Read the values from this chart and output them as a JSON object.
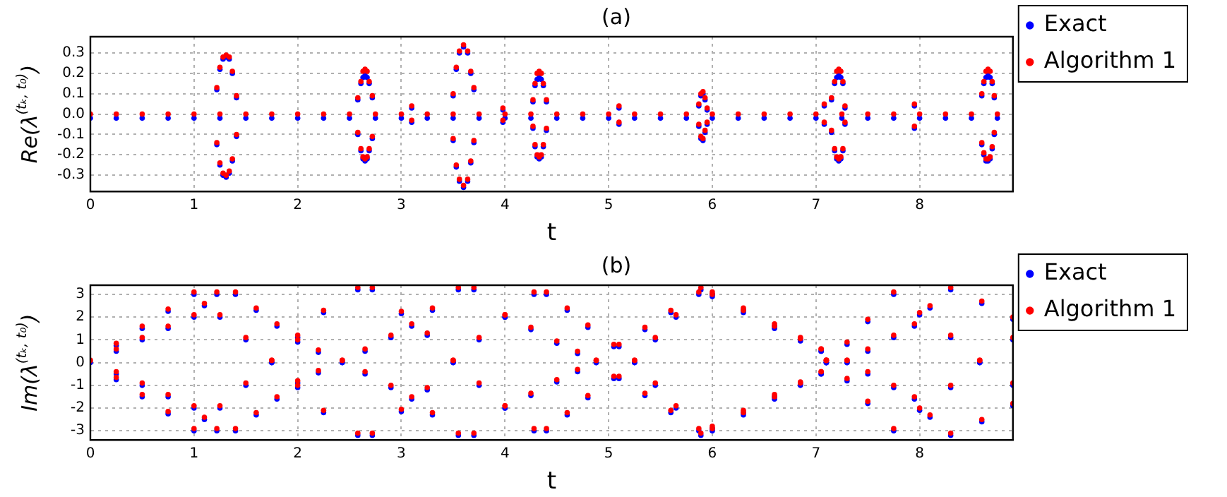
{
  "chart_data": [
    {
      "type": "scatter",
      "title": "(a)",
      "xlabel": "t",
      "ylabel": "Re(λ$^{(tₖ, t₀)}$)",
      "xlim": [
        0,
        8.9
      ],
      "xticks": [
        0,
        1,
        2,
        3,
        4,
        5,
        6,
        7,
        8
      ],
      "ylim": [
        -0.38,
        0.38
      ],
      "yticks": [
        -0.3,
        -0.2,
        -0.1,
        {
          "value": 0,
          "label": "0.0"
        },
        0.1,
        0.2,
        0.3
      ],
      "grid": true,
      "legend": "right",
      "marker": "circle",
      "x": [
        0,
        0.25,
        0.5,
        0.75,
        1,
        1.25,
        1.5,
        1.75,
        2,
        2.25,
        2.5,
        2.75,
        3,
        3.25,
        3.5,
        3.75,
        4,
        4.25,
        4.5,
        4.75,
        5,
        5.25,
        5.5,
        5.75,
        6,
        6.25,
        6.5,
        6.75,
        7,
        7.25,
        7.5,
        7.75,
        8,
        8.25,
        8.5,
        8.75,
        1.22,
        1.25,
        1.28,
        1.31,
        1.34,
        1.37,
        1.41,
        1.22,
        1.25,
        1.28,
        1.31,
        1.34,
        1.37,
        1.41,
        2.58,
        2.61,
        2.63,
        2.65,
        2.67,
        2.69,
        2.72,
        2.58,
        2.61,
        2.63,
        2.65,
        2.67,
        2.69,
        2.72,
        3.5,
        3.53,
        3.56,
        3.6,
        3.64,
        3.67,
        3.7,
        3.5,
        3.53,
        3.56,
        3.6,
        3.64,
        3.67,
        3.7,
        4.27,
        4.29,
        4.31,
        4.33,
        4.35,
        4.37,
        4.4,
        4.27,
        4.29,
        4.31,
        4.33,
        4.35,
        4.37,
        4.4,
        5.87,
        5.89,
        5.91,
        5.93,
        5.95,
        5.87,
        5.89,
        5.91,
        5.93,
        5.95,
        7.15,
        7.18,
        7.2,
        7.22,
        7.24,
        7.26,
        7.28,
        7.15,
        7.18,
        7.2,
        7.22,
        7.24,
        7.26,
        7.28,
        8.6,
        8.62,
        8.64,
        8.66,
        8.68,
        8.7,
        8.72,
        8.6,
        8.62,
        8.64,
        8.66,
        8.68,
        8.7,
        8.72,
        3.1,
        3.1,
        3.98,
        3.98,
        5.1,
        5.1,
        7.08,
        7.08,
        7.95,
        7.95
      ],
      "series": [
        {
          "name": "Exact",
          "color": "#0000ff",
          "values": [
            -0.02,
            -0.02,
            -0.02,
            -0.02,
            -0.02,
            -0.02,
            -0.02,
            -0.02,
            -0.02,
            -0.02,
            -0.02,
            -0.02,
            -0.02,
            -0.02,
            -0.02,
            -0.02,
            -0.02,
            -0.02,
            -0.02,
            -0.02,
            -0.02,
            -0.02,
            -0.02,
            -0.02,
            -0.02,
            -0.02,
            -0.02,
            -0.02,
            -0.02,
            -0.02,
            -0.02,
            -0.02,
            -0.02,
            -0.02,
            -0.02,
            -0.02,
            0.12,
            0.22,
            0.27,
            0.28,
            0.27,
            0.2,
            0.08,
            -0.15,
            -0.25,
            -0.3,
            -0.31,
            -0.29,
            -0.23,
            -0.11,
            0.07,
            0.15,
            0.18,
            0.19,
            0.18,
            0.15,
            0.08,
            -0.1,
            -0.18,
            -0.22,
            -0.23,
            -0.22,
            -0.18,
            -0.12,
            0.09,
            0.22,
            0.3,
            0.33,
            0.3,
            0.2,
            0.12,
            -0.13,
            -0.26,
            -0.33,
            -0.36,
            -0.33,
            -0.24,
            -0.14,
            0.06,
            0.14,
            0.17,
            0.18,
            0.17,
            0.14,
            0.06,
            -0.07,
            -0.16,
            -0.21,
            -0.22,
            -0.21,
            -0.16,
            -0.08,
            0.04,
            0.09,
            0.1,
            0.07,
            0.02,
            -0.06,
            -0.12,
            -0.13,
            -0.09,
            -0.05,
            0.07,
            0.15,
            0.18,
            0.19,
            0.18,
            0.15,
            0.03,
            -0.09,
            -0.18,
            -0.22,
            -0.23,
            -0.22,
            -0.18,
            -0.05,
            0.09,
            0.15,
            0.18,
            0.19,
            0.18,
            0.15,
            0.08,
            -0.15,
            -0.2,
            -0.23,
            -0.23,
            -0.22,
            -0.17,
            -0.1,
            0.03,
            -0.04,
            0.02,
            -0.04,
            0.03,
            -0.05,
            0.04,
            -0.05,
            0.04,
            -0.07
          ]
        },
        {
          "name": "Algorithm 1",
          "color": "#ff0000",
          "values": [
            0,
            0,
            0,
            0,
            0,
            0,
            0,
            0,
            0,
            0,
            0,
            0,
            0,
            0,
            0,
            0,
            0,
            0,
            0,
            0,
            0,
            0,
            0,
            0,
            0,
            0,
            0,
            0,
            0,
            0,
            0,
            0,
            0,
            0,
            0,
            0,
            0.13,
            0.23,
            0.28,
            0.29,
            0.28,
            0.21,
            0.09,
            -0.14,
            -0.24,
            -0.29,
            -0.3,
            -0.28,
            -0.22,
            -0.1,
            0.08,
            0.16,
            0.21,
            0.22,
            0.21,
            0.16,
            0.09,
            -0.09,
            -0.17,
            -0.21,
            -0.22,
            -0.21,
            -0.17,
            -0.11,
            0.1,
            0.23,
            0.31,
            0.34,
            0.31,
            0.21,
            0.13,
            -0.12,
            -0.25,
            -0.32,
            -0.35,
            -0.32,
            -0.23,
            -0.13,
            0.07,
            0.15,
            0.2,
            0.21,
            0.2,
            0.15,
            0.07,
            -0.06,
            -0.15,
            -0.2,
            -0.21,
            -0.2,
            -0.15,
            -0.07,
            0.05,
            0.1,
            0.11,
            0.08,
            0.03,
            -0.05,
            -0.11,
            -0.12,
            -0.08,
            -0.04,
            0.08,
            0.16,
            0.21,
            0.22,
            0.21,
            0.16,
            0.04,
            -0.08,
            -0.17,
            -0.21,
            -0.22,
            -0.21,
            -0.17,
            -0.04,
            0.1,
            0.16,
            0.21,
            0.22,
            0.21,
            0.16,
            0.09,
            -0.14,
            -0.19,
            -0.22,
            -0.22,
            -0.21,
            -0.16,
            -0.09,
            0.04,
            -0.03,
            0.03,
            -0.03,
            0.04,
            -0.04,
            0.05,
            -0.04,
            0.05,
            -0.06
          ]
        }
      ]
    },
    {
      "type": "scatter",
      "title": "(b)",
      "xlabel": "t",
      "ylabel": "Im(λ$^{(tₖ, t₀)}$)",
      "xlim": [
        0,
        8.9
      ],
      "xticks": [
        0,
        1,
        2,
        3,
        4,
        5,
        6,
        7,
        8
      ],
      "ylim": [
        -3.4,
        3.4
      ],
      "yticks": [
        -3,
        -2,
        -1,
        0,
        1,
        2,
        3
      ],
      "grid": true,
      "legend": "right",
      "marker": "circle",
      "x": [
        0,
        0.25,
        0.5,
        0.75,
        1,
        1.25,
        1.5,
        1.75,
        2,
        2.25,
        2.58,
        2.72,
        3,
        3.25,
        3.5,
        3.75,
        4,
        4.28,
        4.4,
        4.6,
        4.8,
        5.05,
        5.25,
        5.45,
        5.65,
        5.89,
        6,
        6.3,
        6.6,
        6.85,
        7.05,
        7.1,
        7.3,
        7.5,
        7.75,
        8,
        8.3,
        8.58,
        8.9,
        0.25,
        0.5,
        0.75,
        1,
        1.25,
        1.5,
        1.75,
        2,
        2.25,
        2.58,
        2.72,
        3,
        3.25,
        3.5,
        3.75,
        4,
        4.28,
        4.4,
        4.6,
        4.8,
        5.05,
        5.25,
        5.45,
        5.65,
        5.89,
        6,
        6.3,
        6.6,
        6.85,
        7.05,
        7.1,
        7.3,
        7.5,
        7.75,
        8,
        8.3,
        8.58,
        8.9,
        0.25,
        0.5,
        0.75,
        1,
        1.1,
        1.22,
        1.4,
        1.6,
        1.8,
        2,
        2.2,
        2.43,
        2.65,
        2.9,
        3.1,
        3.3,
        3.55,
        3.7,
        4,
        4.25,
        4.5,
        4.7,
        4.88,
        5.1,
        5.35,
        5.6,
        5.87,
        6,
        6.3,
        6.6,
        6.85,
        7.05,
        7.1,
        7.3,
        7.5,
        7.75,
        7.95,
        8.1,
        8.3,
        8.6,
        8.9,
        0.25,
        0.5,
        0.75,
        1,
        1.1,
        1.22,
        1.4,
        1.6,
        1.8,
        2,
        2.2,
        2.43,
        2.65,
        2.9,
        3.1,
        3.3,
        3.55,
        3.7,
        4,
        4.25,
        4.5,
        4.7,
        4.88,
        5.1,
        5.35,
        5.6,
        5.87,
        6,
        6.3,
        6.6,
        6.85,
        7.05,
        7.1,
        7.3,
        7.5,
        7.75,
        7.95,
        8.1,
        8.3,
        8.6,
        8.9
      ],
      "series": [
        {
          "name": "Exact",
          "color": "#0000ff",
          "values": [
            0,
            0.75,
            1.5,
            2.25,
            3,
            2,
            1,
            0,
            -1.1,
            -2.2,
            -3.2,
            -3.2,
            -2.15,
            -1.2,
            0,
            1,
            2,
            3,
            3,
            2.3,
            1.55,
            0.7,
            0,
            -1,
            -2,
            -3.2,
            -3,
            -2.3,
            -1.6,
            -1,
            -0.5,
            0,
            0.8,
            1.8,
            3,
            2.1,
            1.1,
            0,
            -1,
            -0.75,
            -1.5,
            -2.25,
            -3,
            -2,
            -1,
            0,
            1.1,
            2.2,
            3.2,
            3.2,
            2.15,
            1.2,
            0,
            -1,
            -2,
            -3,
            -3,
            -2.3,
            -1.55,
            -0.7,
            0,
            1,
            2,
            3.2,
            3,
            2.3,
            1.6,
            1,
            0.5,
            0,
            -0.8,
            -1.8,
            -3,
            -2.1,
            -1.1,
            0,
            1,
            0.5,
            1,
            1.5,
            2,
            2.5,
            3,
            3,
            2.3,
            1.6,
            0.9,
            0.45,
            0,
            -0.5,
            -1.1,
            -1.6,
            -2.3,
            -3.2,
            -3.2,
            -2,
            -1.45,
            -0.85,
            -0.4,
            0,
            0.7,
            1.45,
            2.2,
            3,
            2.9,
            2.2,
            1.5,
            0.95,
            0.5,
            0,
            0,
            -0.5,
            -1.1,
            -1.6,
            -2.4,
            -3.2,
            -2.6,
            -1.9,
            -0.5,
            -1,
            -1.5,
            -2,
            -2.5,
            -3,
            -3,
            -2.3,
            -1.6,
            -0.9,
            -0.45,
            0,
            0.5,
            1.1,
            1.6,
            2.3,
            3.2,
            3.2,
            2,
            1.45,
            0.85,
            0.4,
            0,
            -0.7,
            -1.45,
            -2.2,
            -3,
            -2.9,
            -2.2,
            -1.5,
            -0.95,
            -0.5,
            0,
            0,
            0.5,
            1.1,
            1.6,
            2.4,
            3.2,
            2.6,
            1.9
          ]
        },
        {
          "name": "Algorithm 1",
          "color": "#ff0000",
          "values": [
            0.1,
            0.85,
            1.6,
            2.35,
            3.1,
            2.1,
            1.1,
            0.1,
            -1,
            -2.1,
            -3.1,
            -3.1,
            -2.05,
            -1.1,
            0.1,
            1.1,
            2.1,
            3.1,
            3.1,
            2.4,
            1.65,
            0.8,
            0.1,
            -0.9,
            -1.9,
            -3.1,
            -2.9,
            -2.2,
            -1.5,
            -0.9,
            -0.4,
            0.1,
            0.9,
            1.9,
            3.1,
            2.2,
            1.2,
            0.1,
            -0.9,
            -0.65,
            -1.4,
            -2.15,
            -2.9,
            -1.9,
            -0.9,
            0.1,
            1.2,
            2.3,
            3.3,
            3.3,
            2.25,
            1.3,
            0.1,
            -0.9,
            -1.9,
            -2.9,
            -2.9,
            -2.2,
            -1.45,
            -0.6,
            0.1,
            1.1,
            2.1,
            3.3,
            3.1,
            2.4,
            1.7,
            1.1,
            0.6,
            0.1,
            -0.7,
            -1.7,
            -2.9,
            -2,
            -1,
            0.1,
            1.1,
            0.6,
            1.1,
            1.6,
            2.1,
            2.6,
            3.1,
            3.1,
            2.4,
            1.7,
            1,
            0.55,
            0.1,
            -0.4,
            -1,
            -1.5,
            -2.2,
            -3.1,
            -3.1,
            -1.9,
            -1.35,
            -0.75,
            -0.3,
            0.1,
            0.8,
            1.55,
            2.3,
            3.1,
            3,
            2.3,
            1.6,
            1.05,
            0.6,
            0.1,
            0.1,
            -0.4,
            -1,
            -1.5,
            -2.3,
            -3.1,
            -2.5,
            -1.8,
            -0.4,
            -0.9,
            -1.4,
            -1.9,
            -2.4,
            -2.9,
            -2.9,
            -2.2,
            -1.5,
            -0.8,
            -0.35,
            0.1,
            0.6,
            1.2,
            1.7,
            2.4,
            3.3,
            3.3,
            2.1,
            1.55,
            0.95,
            0.5,
            0.1,
            -0.6,
            -1.35,
            -2.1,
            -2.9,
            -2.8,
            -2.1,
            -1.4,
            -0.85,
            -0.4,
            0.1,
            0.1,
            0.6,
            1.2,
            1.7,
            2.5,
            3.3,
            2.7,
            2
          ]
        }
      ]
    }
  ]
}
